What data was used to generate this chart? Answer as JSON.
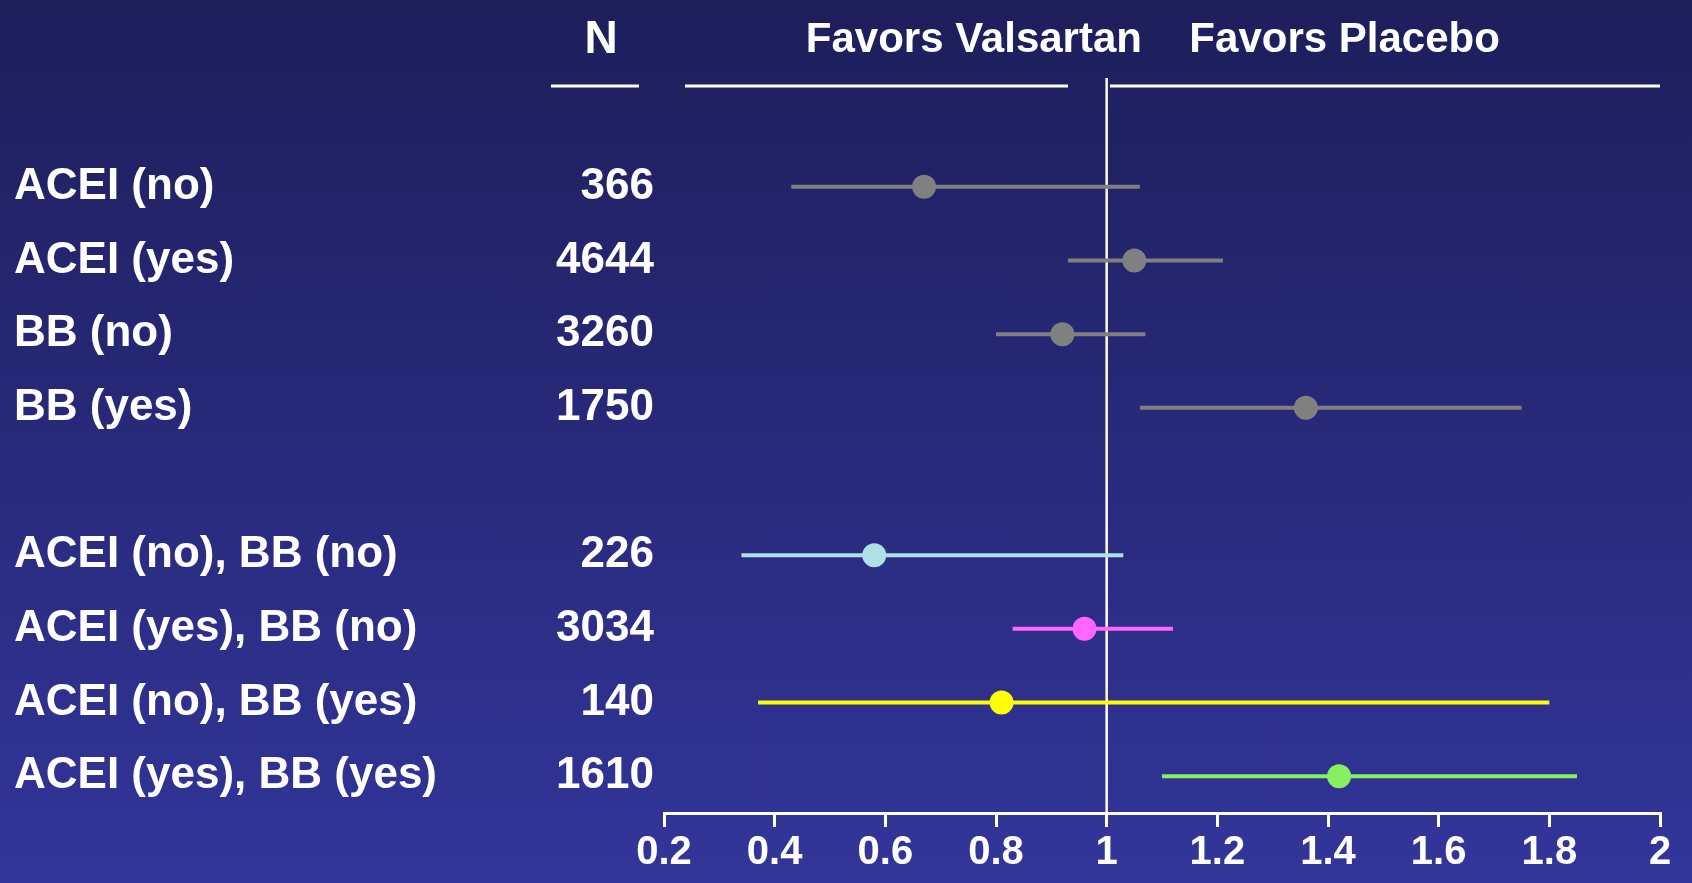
{
  "chart_data": {
    "type": "scatter",
    "orientation": "horizontal",
    "categories": [
      "ACEI (no)",
      "ACEI (yes)",
      "BB (no)",
      "BB (yes)",
      null,
      "ACEI (no), BB (no)",
      "ACEI (yes), BB (no)",
      "ACEI (no), BB (yes)",
      "ACEI (yes), BB (yes)"
    ],
    "y2_categories": [
      "366",
      "4644",
      "3260",
      "1750",
      null,
      "226",
      "3034",
      "140",
      "1610"
    ],
    "values": [
      0.67,
      1.05,
      0.92,
      1.36,
      null,
      0.58,
      0.96,
      0.81,
      1.42
    ],
    "errors": [
      [
        0.43,
        1.06
      ],
      [
        0.93,
        1.21
      ],
      [
        0.8,
        1.07
      ],
      [
        1.06,
        1.75
      ],
      null,
      [
        0.34,
        1.03
      ],
      [
        0.83,
        1.12
      ],
      [
        0.37,
        1.8
      ],
      [
        1.1,
        1.85
      ]
    ],
    "colors": [
      "#808080",
      "#808080",
      "#808080",
      "#808080",
      "#808080",
      "#b0e0e6",
      "#ff66ff",
      "#ffff00",
      "#88f060"
    ],
    "xlim": [
      0.2,
      2
    ],
    "xticks": [
      0.2,
      0.4,
      0.6,
      0.8,
      1,
      1.2,
      1.4,
      1.6,
      1.8,
      2
    ],
    "ref_lines": [
      {
        "axis": "x",
        "value": 1,
        "color": "#ffffff"
      }
    ],
    "annotations": [
      "N",
      "Favors Valsartan",
      "Favors Placebo"
    ],
    "marker": "circle",
    "grid": false,
    "legend": false
  }
}
